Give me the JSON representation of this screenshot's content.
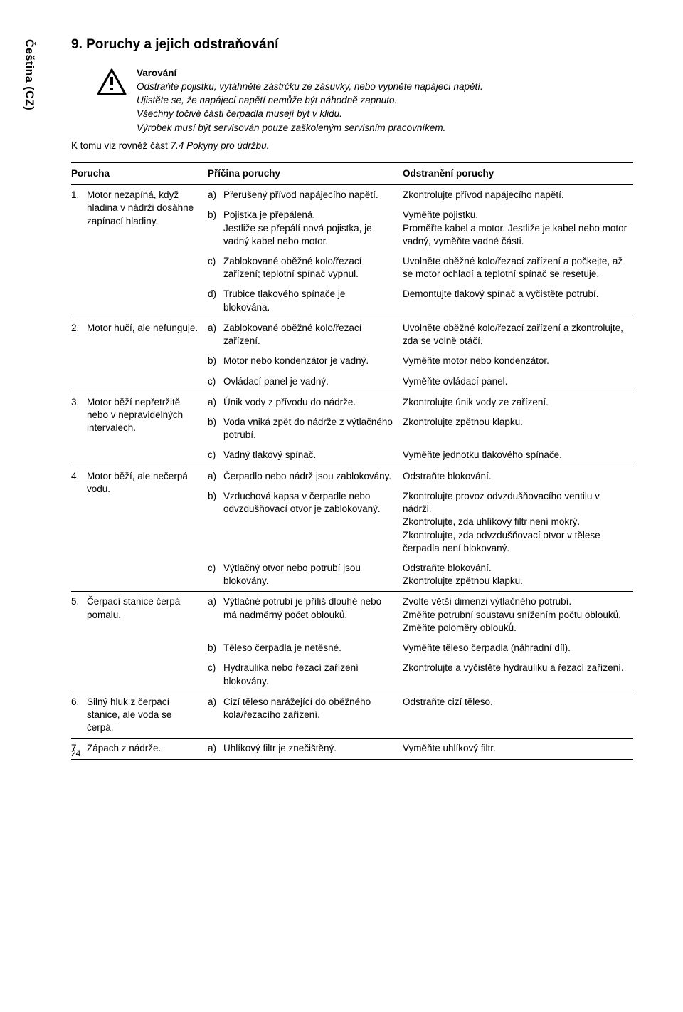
{
  "sidebar": {
    "language": "Čeština (CZ)"
  },
  "heading": "9. Poruchy a jejich odstraňování",
  "warning": {
    "title": "Varování",
    "lines": [
      "Odstraňte pojistku, vytáhněte zástrčku ze zásuvky, nebo vypněte napájecí napětí.",
      "Ujistěte se, že napájecí napětí nemůže být náhodně zapnuto.",
      "Všechny točivé části čerpadla musejí být v klidu.",
      "Výrobek musí být servisován pouze zaškoleným servisním pracovníkem."
    ]
  },
  "note_prefix": "K tomu viz rovněž část ",
  "note_ref": "7.4 Pokyny pro údržbu.",
  "table": {
    "headers": {
      "fault": "Porucha",
      "cause": "Příčina poruchy",
      "remedy": "Odstranění poruchy"
    },
    "faults": [
      {
        "num": "1.",
        "desc": "Motor nezapíná, když hladina v nádrži dosáhne zapínací hladiny.",
        "causes": [
          {
            "l": "a)",
            "c": "Přerušený přívod napájecího napětí.",
            "r": "Zkontrolujte přívod napájecího napětí."
          },
          {
            "l": "b)",
            "c": "Pojistka je přepálená.\nJestliže se přepálí nová pojistka, je vadný kabel nebo motor.",
            "r": "Vyměňte pojistku.\nProměřte kabel a motor. Jestliže je kabel nebo motor vadný, vyměňte vadné části."
          },
          {
            "l": "c)",
            "c": "Zablokované oběžné kolo/řezací zařízení; teplotní spínač vypnul.",
            "r": "Uvolněte oběžné kolo/řezací zařízení a počkejte, až se motor ochladí a teplotní spínač se resetuje."
          },
          {
            "l": "d)",
            "c": "Trubice tlakového spínače je blokována.",
            "r": "Demontujte tlakový spínač a vyčistěte potrubí."
          }
        ]
      },
      {
        "num": "2.",
        "desc": "Motor hučí, ale nefunguje.",
        "causes": [
          {
            "l": "a)",
            "c": "Zablokované oběžné kolo/řezací zařízení.",
            "r": "Uvolněte oběžné kolo/řezací zařízení a zkontrolujte, zda se volně otáčí."
          },
          {
            "l": "b)",
            "c": "Motor nebo kondenzátor je vadný.",
            "r": "Vyměňte motor nebo kondenzátor."
          },
          {
            "l": "c)",
            "c": "Ovládací panel je vadný.",
            "r": "Vyměňte ovládací panel."
          }
        ]
      },
      {
        "num": "3.",
        "desc": "Motor běží nepřetržitě nebo v nepravidelných intervalech.",
        "causes": [
          {
            "l": "a)",
            "c": "Únik vody z přívodu do nádrže.",
            "r": "Zkontrolujte únik vody ze zařízení."
          },
          {
            "l": "b)",
            "c": "Voda vniká zpět do nádrže z výtlačného potrubí.",
            "r": "Zkontrolujte zpětnou klapku."
          },
          {
            "l": "c)",
            "c": "Vadný tlakový spínač.",
            "r": "Vyměňte jednotku tlakového spínače."
          }
        ]
      },
      {
        "num": "4.",
        "desc": "Motor běží, ale nečerpá vodu.",
        "causes": [
          {
            "l": "a)",
            "c": "Čerpadlo nebo nádrž jsou zablokovány.",
            "r": "Odstraňte blokování."
          },
          {
            "l": "b)",
            "c": "Vzduchová kapsa v čerpadle nebo odvzdušňovací otvor je zablokovaný.",
            "r": "Zkontrolujte provoz odvzdušňovacího ventilu v nádrži.\nZkontrolujte, zda uhlíkový filtr není mokrý.\nZkontrolujte, zda odvzdušňovací otvor v tělese čerpadla není blokovaný."
          },
          {
            "l": "c)",
            "c": "Výtlačný otvor nebo potrubí jsou blokovány.",
            "r": "Odstraňte blokování.\nZkontrolujte zpětnou klapku."
          }
        ]
      },
      {
        "num": "5.",
        "desc": "Čerpací stanice čerpá pomalu.",
        "causes": [
          {
            "l": "a)",
            "c": "Výtlačné potrubí je příliš dlouhé nebo má nadměrný počet oblouků.",
            "r": "Zvolte větší dimenzi výtlačného potrubí.\nZměňte potrubní soustavu snížením počtu oblouků.\nZměňte poloměry oblouků."
          },
          {
            "l": "b)",
            "c": "Těleso čerpadla je netěsné.",
            "r": "Vyměňte těleso čerpadla (náhradní díl)."
          },
          {
            "l": "c)",
            "c": "Hydraulika nebo řezací zařízení blokovány.",
            "r": "Zkontrolujte a vyčistěte hydrauliku a řezací zařízení."
          }
        ]
      },
      {
        "num": "6.",
        "desc": "Silný hluk z čerpací stanice, ale voda se čerpá.",
        "causes": [
          {
            "l": "a)",
            "c": "Cizí těleso narážející do oběžného kola/řezacího zařízení.",
            "r": "Odstraňte cizí těleso."
          }
        ]
      },
      {
        "num": "7.",
        "desc": "Zápach z nádrže.",
        "causes": [
          {
            "l": "a)",
            "c": "Uhlíkový filtr je znečištěný.",
            "r": "Vyměňte uhlíkový filtr."
          }
        ]
      }
    ]
  },
  "page_number": "24"
}
